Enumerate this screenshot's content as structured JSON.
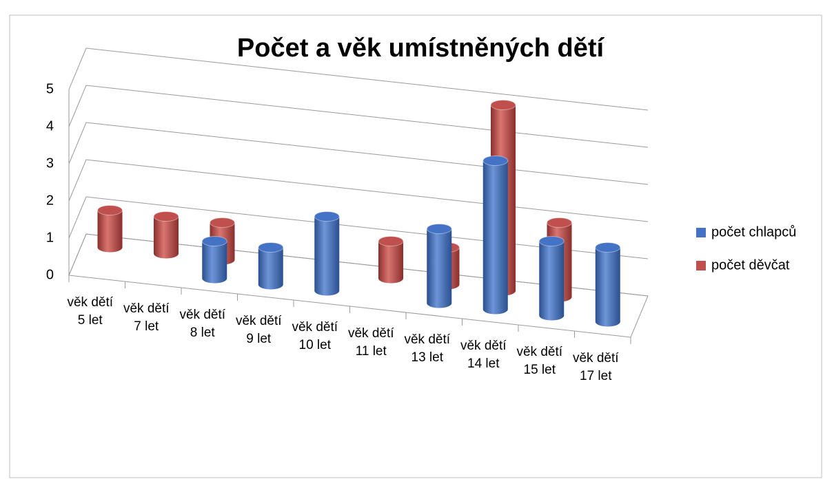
{
  "chart_data": {
    "type": "bar3d",
    "title": "Počet a věk umístněných dětí",
    "categories": [
      "věk dětí 5 let",
      "věk dětí 7 let",
      "věk dětí 8 let",
      "věk dětí 9 let",
      "věk dětí 10 let",
      "věk dětí 11 let",
      "věk dětí 13 let",
      "věk dětí 14 let",
      "věk dětí 15 let",
      "věk dětí 17 let"
    ],
    "series": [
      {
        "name": "počet chlapců",
        "color": "#4472c4",
        "values": [
          0,
          0,
          1,
          1,
          2,
          0,
          2,
          4,
          2,
          2
        ]
      },
      {
        "name": "počet děvčat",
        "color": "#c0504d",
        "values": [
          1,
          1,
          1,
          0,
          0,
          1,
          1,
          5,
          2,
          0
        ]
      }
    ],
    "ylim": [
      0,
      5
    ],
    "yticks": [
      0,
      1,
      2,
      3,
      4,
      5
    ],
    "grid": true,
    "legend": "right"
  }
}
